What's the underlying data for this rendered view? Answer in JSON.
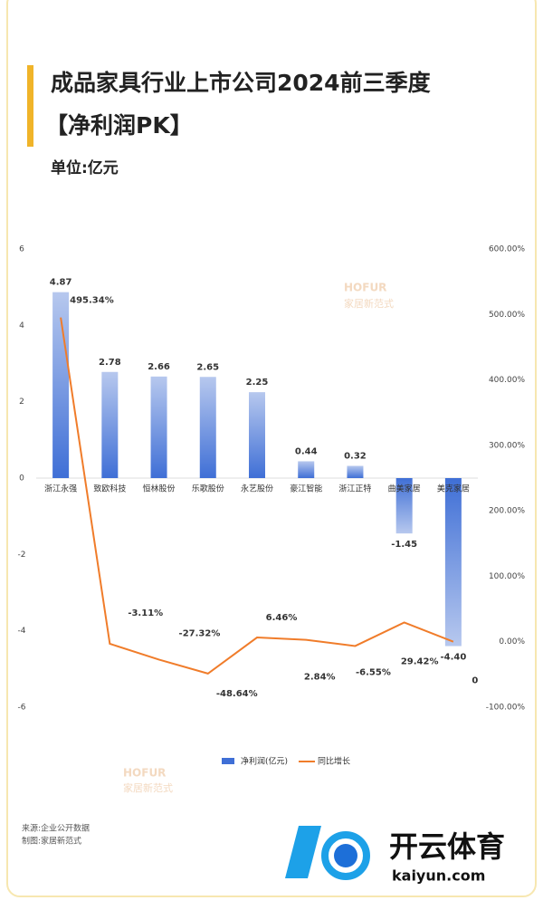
{
  "chart_data": {
    "type": "bar_line",
    "title_lines": [
      "成品家具行业上市公司2024前三季度",
      "【净利润PK】"
    ],
    "subtitle": "单位:亿元",
    "categories": [
      "浙江永强",
      "致欧科技",
      "恒林股份",
      "乐歌股份",
      "永艺股份",
      "豪江智能",
      "浙江正特",
      "曲美家居",
      "美克家居"
    ],
    "series": [
      {
        "name": "净利润(亿元)",
        "color": "#3f6fd6",
        "type": "bar",
        "values": [
          4.87,
          2.78,
          2.66,
          2.65,
          2.25,
          0.44,
          0.32,
          -1.45,
          -4.4
        ],
        "value_labels": [
          "4.87",
          "2.78",
          "2.66",
          "2.65",
          "2.25",
          "0.44",
          "0.32",
          "-1.45",
          "-4.40"
        ]
      },
      {
        "name": "同比增长",
        "color": "#f07c2a",
        "type": "line",
        "axis": "y2",
        "values": [
          495.34,
          -3.11,
          -27.32,
          -48.64,
          6.46,
          2.84,
          -6.55,
          29.42,
          0
        ],
        "value_labels": [
          "495.34%",
          "-3.11%",
          "-27.32%",
          "-48.64%",
          "6.46%",
          "2.84%",
          "-6.55%",
          "29.42%",
          "0"
        ]
      }
    ],
    "ylim": [
      -6,
      6
    ],
    "yticks": [
      -6,
      -4,
      -2,
      0,
      2,
      4,
      6
    ],
    "y2lim": [
      -100,
      600
    ],
    "y2ticks": [
      {
        "value": -100,
        "label": "-100.00%"
      },
      {
        "value": 0,
        "label": "0.00%"
      },
      {
        "value": 100,
        "label": "100.00%"
      },
      {
        "value": 200,
        "label": "200.00%"
      },
      {
        "value": 300,
        "label": "300.00%"
      },
      {
        "value": 400,
        "label": "400.00%"
      },
      {
        "value": 500,
        "label": "500.00%"
      },
      {
        "value": 600,
        "label": "600.00%"
      }
    ],
    "grid": false,
    "legend": "bottom",
    "watermark": [
      "HOFUR",
      "家居新范式"
    ],
    "source": [
      "来源:企业公开数据",
      "制图:家居新范式"
    ],
    "logo": [
      "开云体育",
      "kaiyun.com"
    ]
  }
}
